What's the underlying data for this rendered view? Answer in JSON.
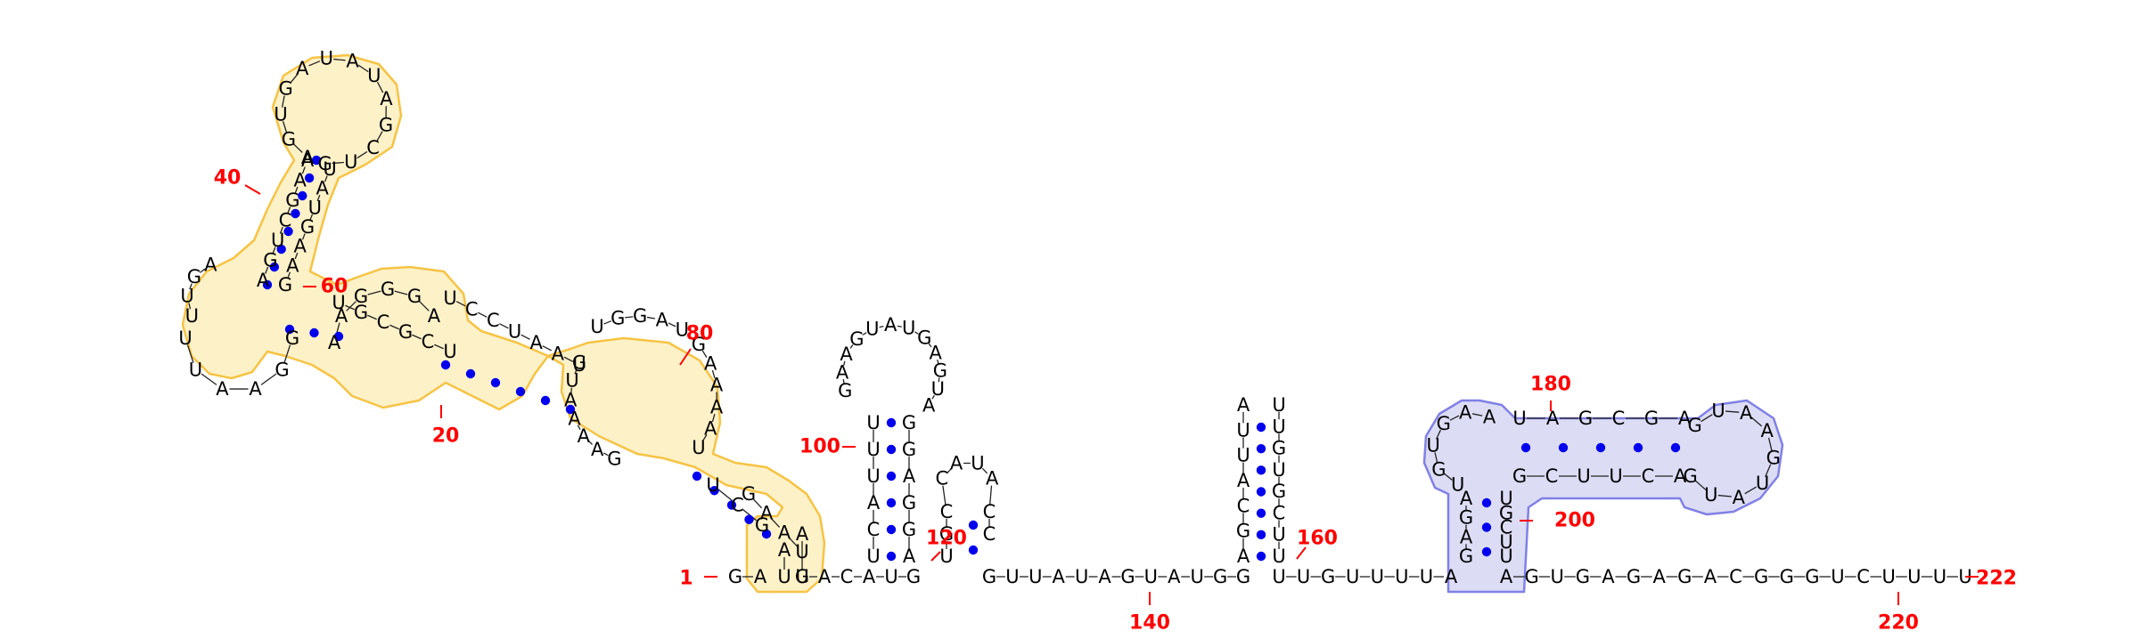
{
  "rna": {
    "sequence_length": 222,
    "segments": {
      "tail_3prime": [
        "A",
        "G",
        "U",
        "G",
        "A",
        "G",
        "A",
        "G",
        "A",
        "C",
        "G",
        "G",
        "G",
        "U",
        "C",
        "U",
        "U",
        "U",
        "U"
      ],
      "linker_140": [
        "G",
        "U",
        "U",
        "A",
        "U",
        "A",
        "G",
        "U",
        "A",
        "U",
        "G",
        "G"
      ],
      "linker_160": [
        "U",
        "U",
        "G",
        "U",
        "U",
        "U",
        "U",
        "A"
      ],
      "linker_5prime": [
        "G",
        "A"
      ],
      "linker_110": [
        "U",
        "A",
        "C",
        "A"
      ]
    },
    "hairpins": {
      "h100_left": [
        "U",
        "U",
        "U",
        "A",
        "C",
        "U"
      ],
      "h100_right": [
        "G",
        "G",
        "A",
        "G",
        "G",
        "A"
      ],
      "h100_loop": [
        "G",
        "A",
        "A",
        "G",
        "U",
        "A",
        "U",
        "G",
        "A",
        "G",
        "U",
        "A"
      ],
      "h125": [
        "U",
        "G",
        "C",
        "C",
        "A",
        "U",
        "A",
        "C",
        "C"
      ],
      "h150_left": [
        "A",
        "G",
        "C",
        "A",
        "U",
        "U",
        "A"
      ],
      "h150_right": [
        "U",
        "U",
        "G",
        "U",
        "G",
        "C",
        "U",
        "U"
      ]
    },
    "structure_letters": {
      "blue_domain": [
        "G",
        "A",
        "G",
        "A",
        "U",
        "G",
        "U",
        "G",
        "A",
        "A",
        "U",
        "A",
        "G",
        "C",
        "G",
        "A",
        "G",
        "U",
        "A",
        "A",
        "G",
        "U",
        "A",
        "U",
        "G",
        "A",
        "C",
        "U",
        "U",
        "C",
        "G",
        "U",
        "G",
        "C",
        "U",
        "U",
        "C",
        "U",
        "C",
        "A"
      ],
      "yellow_domain": [
        "U",
        "A",
        "G",
        "C",
        "U",
        "G",
        "A",
        "A",
        "A",
        "A",
        "U",
        "G",
        "U",
        "A",
        "A",
        "U",
        "C",
        "C",
        "U",
        "A",
        "G",
        "G",
        "G",
        "A",
        "A",
        "G",
        "G",
        "A",
        "A",
        "U",
        "U",
        "U",
        "U",
        "G",
        "A",
        "A",
        "G",
        "U",
        "C",
        "G",
        "A",
        "A",
        "A",
        "G",
        "U",
        "G",
        "A",
        "U",
        "A",
        "U",
        "A",
        "G",
        "C",
        "U",
        "G",
        "U",
        "A",
        "U",
        "G",
        "A",
        "A",
        "G",
        "U",
        "G",
        "C",
        "G",
        "C",
        "U",
        "U",
        "G",
        "G",
        "A",
        "U",
        "G",
        "A",
        "A",
        "A",
        "A",
        "U",
        "G",
        "A",
        "A",
        "U",
        "G",
        "A",
        "U"
      ]
    },
    "numbers": [
      "1",
      "20",
      "40",
      "60",
      "80",
      "100",
      "120",
      "140",
      "160",
      "180",
      "200",
      "220",
      "222"
    ],
    "highlight_colors": {
      "domain_1": "#f6c343",
      "domain_2": "#8080e6"
    }
  }
}
